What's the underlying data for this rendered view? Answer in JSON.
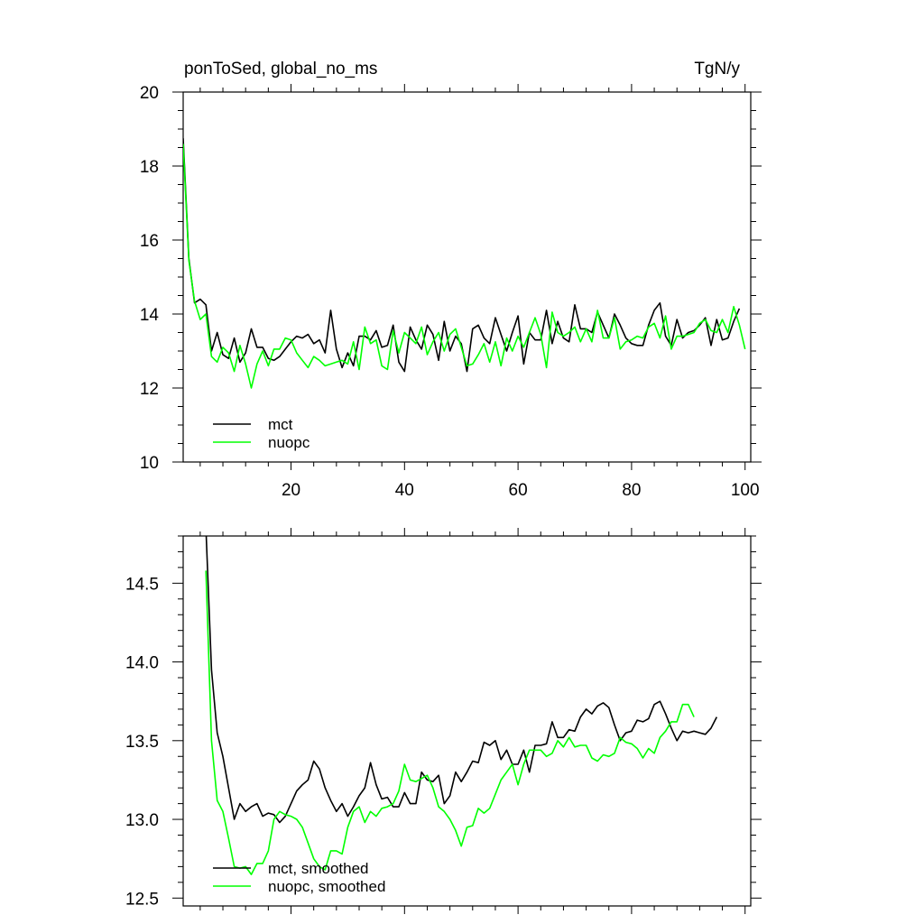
{
  "chart_data": [
    {
      "type": "line",
      "title_left": "ponToSed, global_no_ms",
      "title_right": "TgN/y",
      "xlim": [
        1,
        101
      ],
      "ylim": [
        10,
        20
      ],
      "x_major_ticks": [
        20,
        40,
        60,
        80,
        100
      ],
      "y_major_ticks": [
        10,
        12,
        14,
        16,
        18,
        20
      ],
      "x_start": 1,
      "legend_position": "bottom-left",
      "series": [
        {
          "name": "mct",
          "color": "#000000",
          "values": [
            18.75,
            15.5,
            14.3,
            14.4,
            14.25,
            13.0,
            13.5,
            12.9,
            12.8,
            13.35,
            12.7,
            12.95,
            13.6,
            13.1,
            13.1,
            12.8,
            12.75,
            12.85,
            13.05,
            13.25,
            13.4,
            13.35,
            13.45,
            13.2,
            13.3,
            12.95,
            14.1,
            13.05,
            12.55,
            12.95,
            12.6,
            13.4,
            13.4,
            13.3,
            13.55,
            13.1,
            13.15,
            13.7,
            12.7,
            12.45,
            13.65,
            13.3,
            13.05,
            13.7,
            13.45,
            12.75,
            13.8,
            13.0,
            13.4,
            13.2,
            12.45,
            13.6,
            13.7,
            13.35,
            13.2,
            13.9,
            13.45,
            13.0,
            13.5,
            13.95,
            12.65,
            13.5,
            13.3,
            13.3,
            14.1,
            13.2,
            13.8,
            13.35,
            13.25,
            14.25,
            13.6,
            13.6,
            13.5,
            14.05,
            13.7,
            13.35,
            14.0,
            13.7,
            13.35,
            13.2,
            13.15,
            13.15,
            13.7,
            14.1,
            14.3,
            13.4,
            13.15,
            13.85,
            13.35,
            13.5,
            13.55,
            13.7,
            13.9,
            13.15,
            13.85,
            13.3,
            13.35,
            13.8,
            14.15
          ],
          "values_tail": []
        },
        {
          "name": "nuopc",
          "color": "#00ff00",
          "values": [
            18.6,
            15.45,
            14.35,
            13.85,
            14.0,
            12.85,
            12.7,
            13.1,
            12.95,
            12.45,
            13.15,
            12.65,
            12.0,
            12.65,
            13.0,
            12.6,
            13.05,
            13.05,
            13.35,
            13.3,
            12.95,
            12.75,
            12.55,
            12.85,
            12.75,
            12.6,
            12.65,
            12.7,
            12.75,
            12.65,
            13.25,
            12.5,
            13.65,
            13.2,
            13.3,
            12.6,
            12.5,
            13.55,
            12.95,
            13.5,
            13.35,
            13.2,
            13.65,
            12.9,
            13.25,
            13.5,
            13.0,
            13.45,
            13.6,
            13.1,
            12.6,
            12.65,
            12.9,
            13.2,
            12.7,
            13.25,
            12.6,
            13.35,
            13.0,
            13.4,
            13.1,
            13.5,
            13.9,
            13.45,
            12.55,
            14.05,
            13.5,
            13.4,
            13.5,
            13.65,
            13.25,
            13.6,
            13.25,
            14.1,
            13.35,
            13.35,
            13.9,
            13.05,
            13.25,
            13.3,
            13.4,
            13.35,
            13.65,
            13.75,
            13.35,
            13.95,
            13.05,
            13.4,
            13.4,
            13.45,
            13.5,
            13.75,
            13.85,
            13.55,
            13.5,
            13.85,
            13.5,
            14.2,
            13.7
          ],
          "values_tail": [
            13.05
          ]
        }
      ]
    },
    {
      "type": "line",
      "xlim": [
        1,
        101
      ],
      "ylim": [
        12.45,
        14.8
      ],
      "x_major_ticks": [
        20,
        40,
        60,
        80,
        100
      ],
      "y_major_ticks": [
        12.5,
        13.0,
        13.5,
        14.0,
        14.5
      ],
      "y_tick_labels": [
        "12.5",
        "13.0",
        "13.5",
        "14.0",
        "14.5"
      ],
      "x_start": 5,
      "legend_position": "bottom-left",
      "series": [
        {
          "name": "mct, smoothed",
          "color": "#000000",
          "values": [
            14.85,
            13.95,
            13.55,
            13.4,
            13.2,
            13.0,
            13.1,
            13.05,
            13.08,
            13.1,
            13.02,
            13.04,
            13.03,
            12.98,
            13.02,
            13.1,
            13.18,
            13.22,
            13.25,
            13.37,
            13.32,
            13.2,
            13.12,
            13.05,
            13.1,
            13.02,
            13.08,
            13.15,
            13.2,
            13.36,
            13.22,
            13.13,
            13.14,
            13.08,
            13.08,
            13.17,
            13.1,
            13.1,
            13.3,
            13.25,
            13.24,
            13.28,
            13.1,
            13.15,
            13.3,
            13.24,
            13.3,
            13.37,
            13.36,
            13.49,
            13.47,
            13.5,
            13.38,
            13.44,
            13.35,
            13.35,
            13.44,
            13.3,
            13.47,
            13.47,
            13.48,
            13.62,
            13.52,
            13.52,
            13.57,
            13.56,
            13.65,
            13.7,
            13.67,
            13.72,
            13.74,
            13.71,
            13.6,
            13.5,
            13.55,
            13.56,
            13.63,
            13.62,
            13.64,
            13.73,
            13.75,
            13.67,
            13.58,
            13.5,
            13.56,
            13.55,
            13.56,
            13.55,
            13.54,
            13.58,
            13.65
          ],
          "values_tail": []
        },
        {
          "name": "nuopc, smoothed",
          "color": "#00ff00",
          "values": [
            14.58,
            13.5,
            13.12,
            13.05,
            12.88,
            12.7,
            12.69,
            12.7,
            12.65,
            12.72,
            12.72,
            12.8,
            13.0,
            13.05,
            13.03,
            13.02,
            13.0,
            12.95,
            12.85,
            12.75,
            12.7,
            12.68,
            12.8,
            12.8,
            12.78,
            12.95,
            13.05,
            13.08,
            12.98,
            13.05,
            13.02,
            13.07,
            13.08,
            13.1,
            13.18,
            13.35,
            13.25,
            13.24,
            13.26,
            13.28,
            13.2,
            13.08,
            13.05,
            13.0,
            12.93,
            12.83,
            12.95,
            12.96,
            13.07,
            13.04,
            13.07,
            13.16,
            13.25,
            13.3,
            13.35,
            13.22,
            13.35,
            13.44,
            13.44,
            13.44,
            13.4,
            13.42,
            13.5,
            13.46,
            13.52,
            13.46,
            13.47,
            13.47,
            13.39,
            13.37,
            13.41,
            13.4,
            13.42,
            13.52,
            13.49,
            13.48,
            13.45,
            13.39,
            13.45,
            13.42,
            13.52,
            13.56,
            13.62,
            13.62,
            13.73,
            13.73,
            13.65
          ],
          "values_tail": []
        }
      ]
    }
  ]
}
